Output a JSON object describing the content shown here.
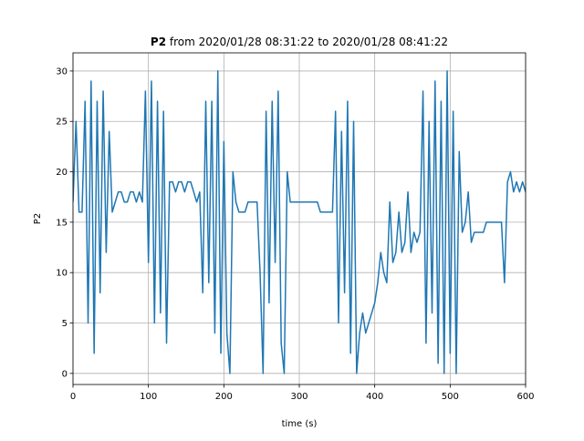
{
  "chart_data": {
    "type": "line",
    "title_prefix": "P2",
    "title": "from 2020/01/28 08:31:22 to 2020/01/28 08:41:22",
    "xlabel": "time (s)",
    "ylabel": "P2",
    "xlim": [
      0,
      600
    ],
    "ylim": [
      -1.1,
      31.8
    ],
    "xticks": [
      0,
      100,
      200,
      300,
      400,
      500,
      600
    ],
    "yticks": [
      0,
      5,
      10,
      15,
      20,
      25,
      30
    ],
    "grid": true,
    "x": [
      0,
      4,
      8,
      12,
      16,
      20,
      24,
      28,
      32,
      36,
      40,
      44,
      48,
      52,
      56,
      60,
      64,
      68,
      72,
      76,
      80,
      84,
      88,
      92,
      96,
      100,
      104,
      108,
      112,
      116,
      120,
      124,
      128,
      132,
      136,
      140,
      144,
      148,
      152,
      156,
      160,
      164,
      168,
      172,
      176,
      180,
      184,
      188,
      192,
      196,
      200,
      204,
      208,
      212,
      216,
      220,
      224,
      228,
      232,
      236,
      240,
      244,
      248,
      252,
      256,
      260,
      264,
      268,
      272,
      276,
      280,
      284,
      288,
      292,
      296,
      300,
      304,
      308,
      312,
      316,
      320,
      324,
      328,
      332,
      336,
      340,
      344,
      348,
      352,
      356,
      360,
      364,
      368,
      372,
      376,
      380,
      384,
      388,
      392,
      396,
      400,
      404,
      408,
      412,
      416,
      420,
      424,
      428,
      432,
      436,
      440,
      444,
      448,
      452,
      456,
      460,
      464,
      468,
      472,
      476,
      480,
      484,
      488,
      492,
      496,
      500,
      504,
      508,
      512,
      516,
      520,
      524,
      528,
      532,
      536,
      540,
      544,
      548,
      552,
      556,
      560,
      564,
      568,
      572,
      576,
      580,
      584,
      588,
      592,
      596,
      600
    ],
    "series": [
      {
        "name": "P2",
        "color": "#1f77b4",
        "values": [
          17,
          25,
          16,
          16,
          27,
          5,
          29,
          2,
          27,
          8,
          28,
          12,
          24,
          16,
          17,
          18,
          18,
          17,
          17,
          18,
          18,
          17,
          18,
          17,
          28,
          11,
          29,
          5,
          27,
          6,
          26,
          3,
          19,
          19,
          18,
          19,
          19,
          18,
          19,
          19,
          18,
          17,
          18,
          8,
          27,
          9,
          27,
          4,
          30,
          2,
          23,
          4,
          0,
          20,
          17,
          16,
          16,
          16,
          17,
          17,
          17,
          17,
          10,
          0,
          26,
          7,
          27,
          11,
          28,
          3,
          0,
          20,
          17,
          17,
          17,
          17,
          17,
          17,
          17,
          17,
          17,
          17,
          16,
          16,
          16,
          16,
          16,
          26,
          5,
          24,
          8,
          27,
          2,
          25,
          0,
          4,
          6,
          4,
          5,
          6,
          7,
          9,
          12,
          10,
          9,
          17,
          11,
          12,
          16,
          12,
          13,
          18,
          12,
          14,
          13,
          14,
          28,
          3,
          25,
          6,
          29,
          1,
          27,
          0,
          30,
          2,
          26,
          0,
          22,
          14,
          15,
          18,
          13,
          14,
          14,
          14,
          14,
          15,
          15,
          15,
          15,
          15,
          15,
          9,
          19,
          20,
          18,
          19,
          18,
          19,
          18
        ]
      }
    ]
  }
}
